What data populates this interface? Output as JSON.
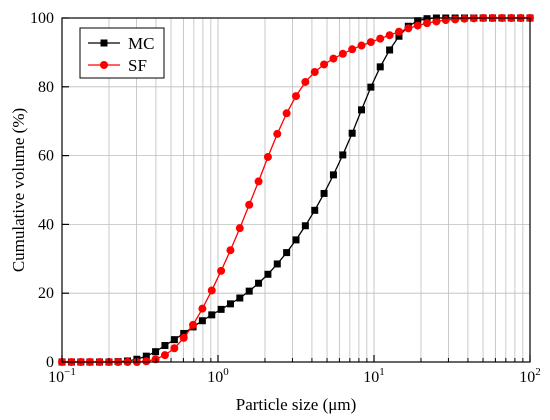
{
  "chart_data": {
    "type": "line",
    "xlabel": "Particle size (μm)",
    "ylabel": "Cumulative volume (%)",
    "x_scale": "log",
    "xlim": [
      0.1,
      100
    ],
    "ylim": [
      0,
      100
    ],
    "x_ticks": [
      {
        "value": 0.1,
        "base": "10",
        "exp": "−1"
      },
      {
        "value": 1,
        "base": "10",
        "exp": "0"
      },
      {
        "value": 10,
        "base": "10",
        "exp": "1"
      },
      {
        "value": 100,
        "base": "10",
        "exp": "2"
      }
    ],
    "y_ticks": [
      0,
      20,
      40,
      60,
      80,
      100
    ],
    "grid": true,
    "legend": "top-left",
    "series": [
      {
        "name": "MC",
        "color": "#000000",
        "marker": "square",
        "x": [
          0.1,
          0.115,
          0.132,
          0.151,
          0.174,
          0.2,
          0.229,
          0.263,
          0.302,
          0.347,
          0.398,
          0.457,
          0.525,
          0.603,
          0.692,
          0.794,
          0.912,
          1.047,
          1.202,
          1.38,
          1.585,
          1.82,
          2.089,
          2.399,
          2.754,
          3.162,
          3.631,
          4.169,
          4.786,
          5.495,
          6.31,
          7.244,
          8.318,
          9.55,
          10.965,
          12.589,
          14.454,
          16.596,
          19.055,
          21.878,
          25.119,
          28.84,
          33.113,
          38.019,
          43.652,
          50.119,
          57.544,
          66.069,
          75.858,
          87.096,
          100
        ],
        "y": [
          0,
          0,
          0,
          0,
          0,
          0,
          0.1,
          0.3,
          0.8,
          1.7,
          3.0,
          4.8,
          6.5,
          8.3,
          10.2,
          12.0,
          13.7,
          15.3,
          16.9,
          18.6,
          20.6,
          22.9,
          25.5,
          28.5,
          31.8,
          35.5,
          39.6,
          44.1,
          49.0,
          54.4,
          60.2,
          66.5,
          73.3,
          79.9,
          85.8,
          90.7,
          94.7,
          97.6,
          99.2,
          99.8,
          100,
          100,
          100,
          100,
          100,
          100,
          100,
          100,
          100,
          100,
          100
        ]
      },
      {
        "name": "SF",
        "color": "#ff0000",
        "marker": "circle",
        "x": [
          0.1,
          0.115,
          0.132,
          0.151,
          0.174,
          0.2,
          0.229,
          0.263,
          0.302,
          0.347,
          0.398,
          0.457,
          0.525,
          0.603,
          0.692,
          0.794,
          0.912,
          1.047,
          1.202,
          1.38,
          1.585,
          1.82,
          2.089,
          2.399,
          2.754,
          3.162,
          3.631,
          4.169,
          4.786,
          5.495,
          6.31,
          7.244,
          8.318,
          9.55,
          10.965,
          12.589,
          14.454,
          16.596,
          19.055,
          21.878,
          25.119,
          28.84,
          33.113,
          38.019,
          43.652,
          50.119,
          57.544,
          66.069,
          75.858,
          87.096,
          100
        ],
        "y": [
          0,
          0,
          0,
          0,
          0,
          0,
          0,
          0,
          0,
          0.2,
          0.8,
          2.0,
          4.0,
          7.0,
          10.8,
          15.5,
          20.8,
          26.5,
          32.5,
          38.9,
          45.7,
          52.5,
          59.6,
          66.3,
          72.3,
          77.3,
          81.4,
          84.3,
          86.5,
          88.2,
          89.6,
          90.9,
          92.0,
          93.0,
          94.0,
          95.0,
          96.0,
          97.0,
          97.8,
          98.5,
          99.0,
          99.4,
          99.6,
          99.8,
          99.9,
          100,
          100,
          100,
          100,
          100,
          100
        ]
      }
    ]
  }
}
